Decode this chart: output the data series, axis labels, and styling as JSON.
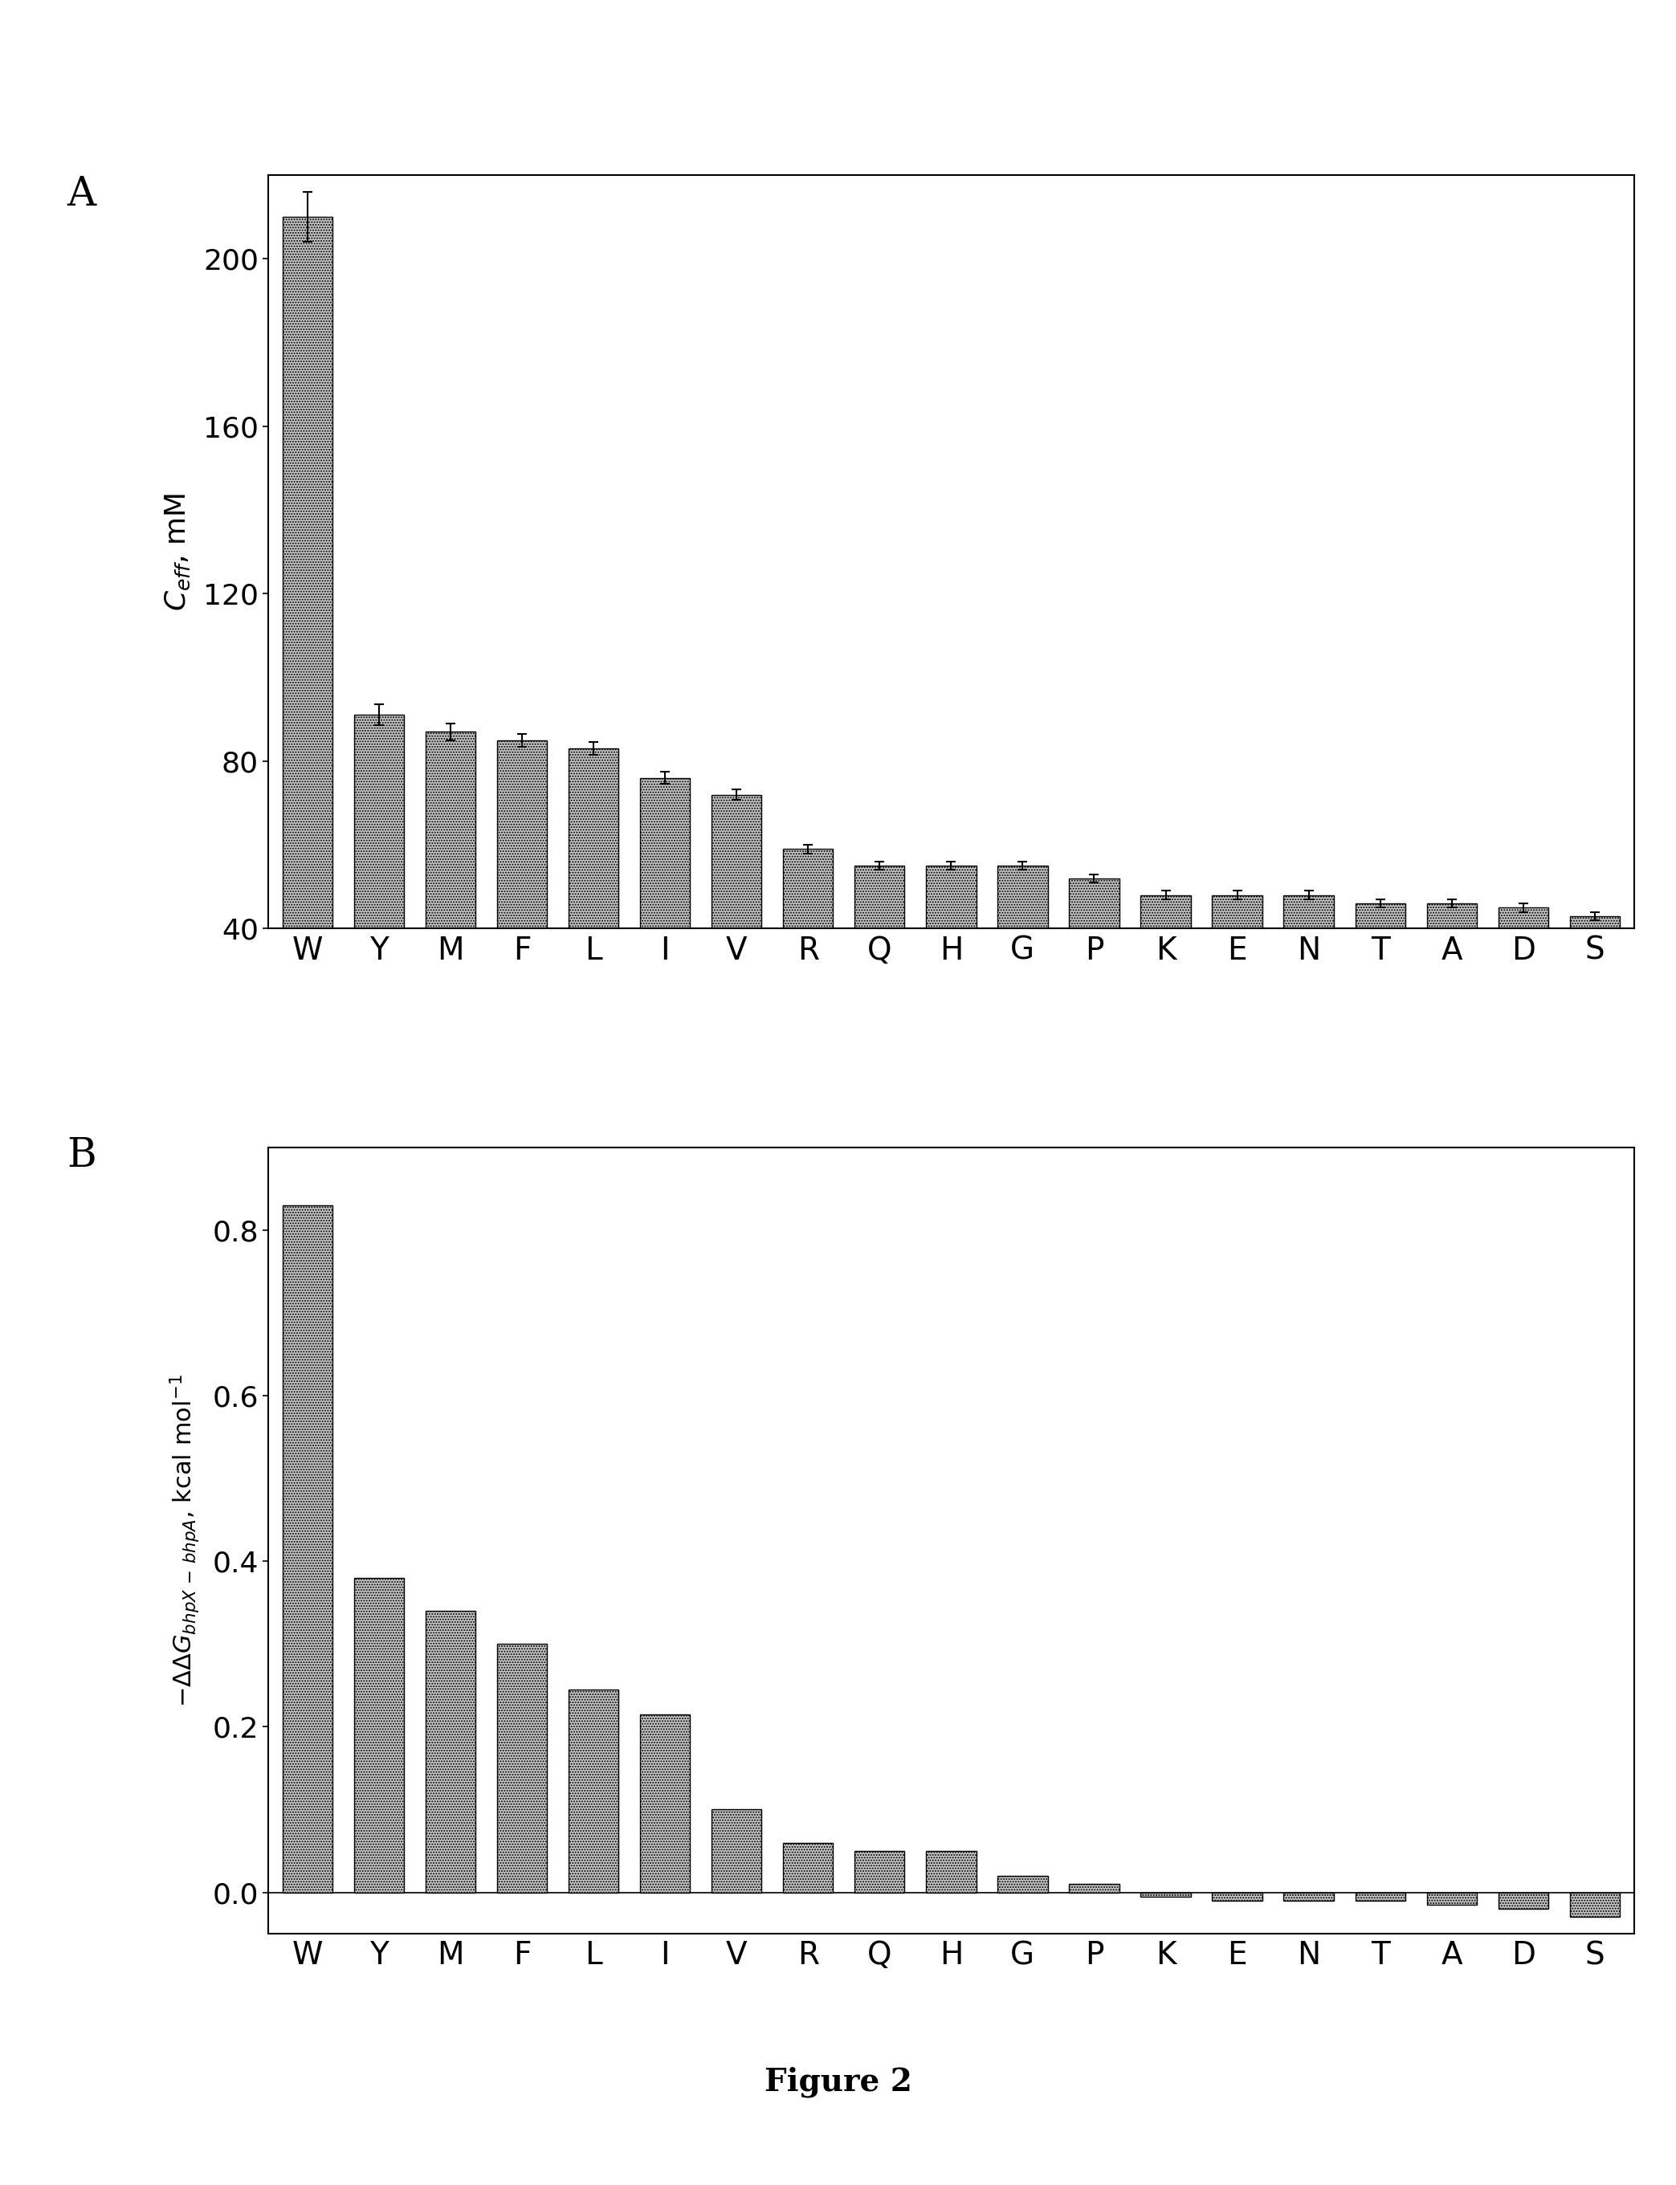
{
  "categories": [
    "W",
    "Y",
    "M",
    "F",
    "L",
    "I",
    "V",
    "R",
    "Q",
    "H",
    "G",
    "P",
    "K",
    "E",
    "N",
    "T",
    "A",
    "D",
    "S"
  ],
  "panel_A_values": [
    210,
    91,
    87,
    85,
    83,
    76,
    72,
    59,
    55,
    55,
    55,
    52,
    48,
    48,
    48,
    46,
    46,
    45,
    43
  ],
  "panel_A_errors": [
    6,
    2.5,
    2.0,
    1.5,
    1.5,
    1.5,
    1.2,
    1.0,
    1.0,
    1.0,
    1.0,
    1.0,
    1.0,
    1.0,
    1.0,
    1.0,
    1.0,
    1.0,
    1.0
  ],
  "panel_B_values": [
    0.83,
    0.38,
    0.34,
    0.3,
    0.245,
    0.215,
    0.1,
    0.06,
    0.05,
    0.05,
    0.02,
    0.01,
    -0.005,
    -0.01,
    -0.01,
    -0.01,
    -0.015,
    -0.02,
    -0.03
  ],
  "panel_A_ylabel": "$C_{eff}$, mM",
  "panel_A_ylim": [
    40,
    220
  ],
  "panel_A_yticks": [
    40,
    80,
    120,
    160,
    200
  ],
  "panel_B_ylabel": "$- \\Delta\\Delta G_{bhpX\\,-\\,bhpA}$, kcal mol$^{-1}$",
  "panel_B_ylim": [
    -0.05,
    0.9
  ],
  "panel_B_yticks": [
    0.0,
    0.2,
    0.4,
    0.6,
    0.8
  ],
  "bar_facecolor": "#c8c8c8",
  "bar_hatch": ".....",
  "bar_edgecolor": "#000000",
  "background_color": "#ffffff",
  "label_A": "A",
  "label_B": "B",
  "figure_label": "Figure 2",
  "label_fontsize": 36,
  "tick_fontsize": 26,
  "ylabel_fontsize_A": 26,
  "ylabel_fontsize_B": 22,
  "xlabel_fontsize": 28,
  "figure_label_fontsize": 28
}
